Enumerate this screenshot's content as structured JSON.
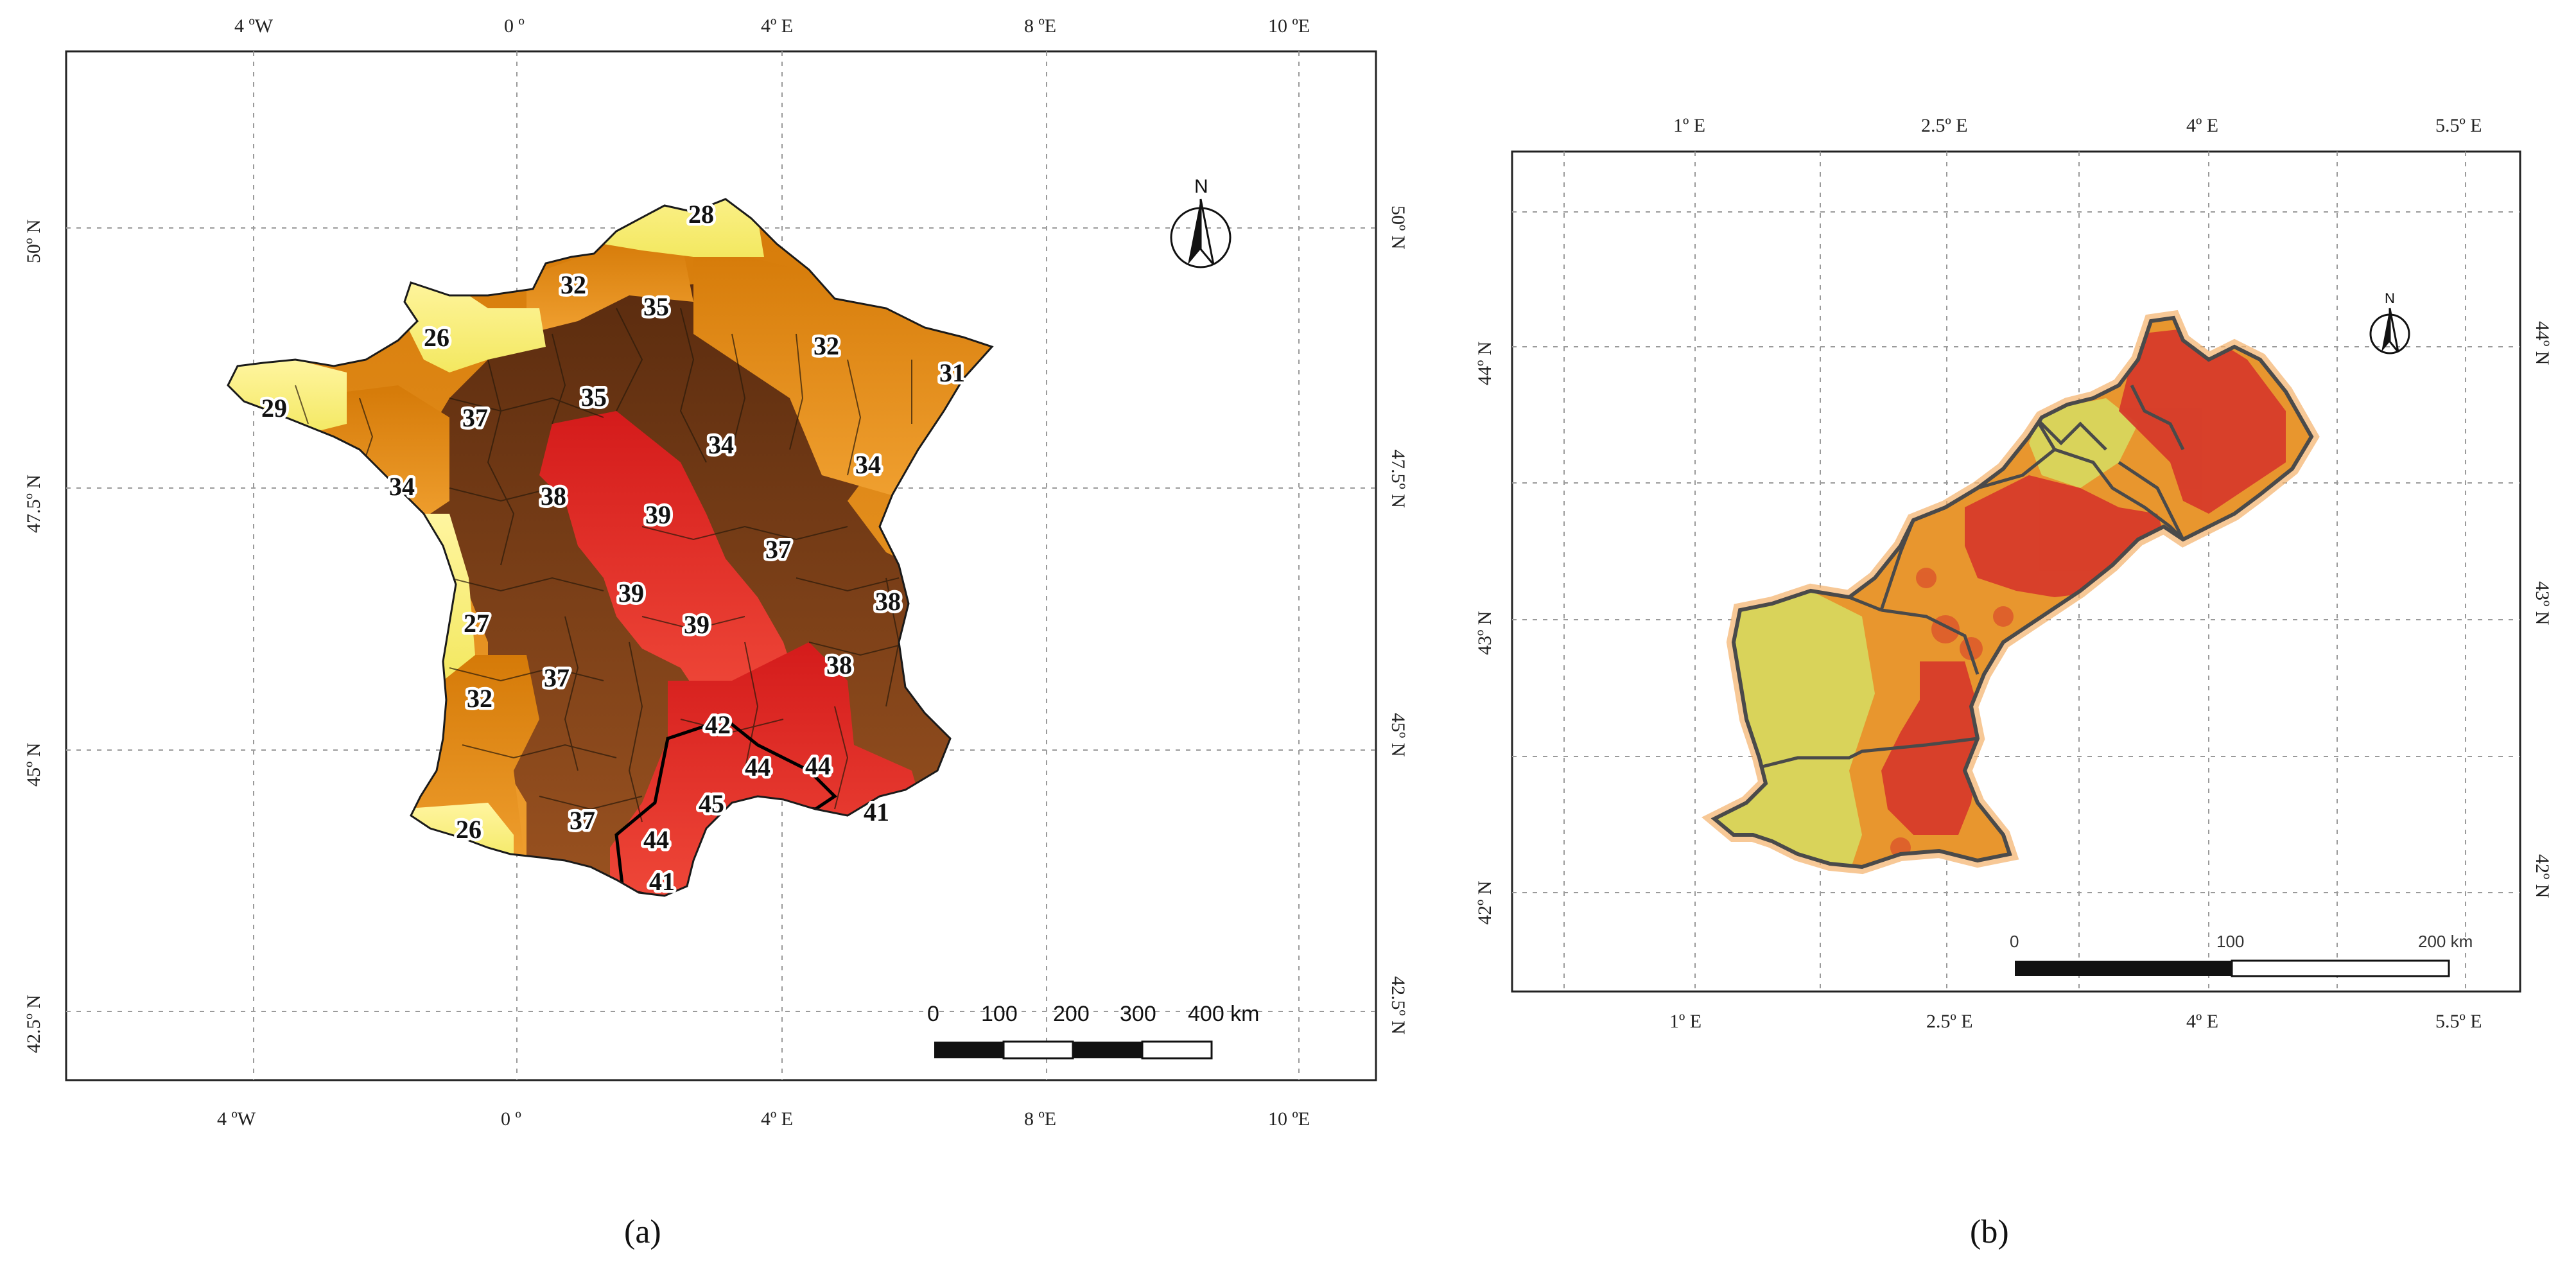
{
  "panel_a": {
    "caption": "(a)",
    "lon_ticks": [
      "4 ºW",
      "0 º",
      "4º E",
      "8 ºE",
      "10 ºE"
    ],
    "lat_ticks": [
      "50º N",
      "47.5º N",
      "45º N",
      "42.5º N"
    ],
    "scale_labels": [
      "0",
      "100",
      "200",
      "300",
      "400 km"
    ],
    "north_label": "N",
    "department_values": [
      {
        "label": "28",
        "color": "#fbf280"
      },
      {
        "label": "32",
        "color": "#e6890e"
      },
      {
        "label": "35",
        "color": "#7a3d14"
      },
      {
        "label": "26",
        "color": "#fbf280"
      },
      {
        "label": "32",
        "color": "#e6890e"
      },
      {
        "label": "31",
        "color": "#e6890e"
      },
      {
        "label": "29",
        "color": "#fbf280"
      },
      {
        "label": "37",
        "color": "#7a3d14"
      },
      {
        "label": "35",
        "color": "#7a3d14"
      },
      {
        "label": "34",
        "color": "#7a3d14"
      },
      {
        "label": "34",
        "color": "#e6890e"
      },
      {
        "label": "34",
        "color": "#e6890e"
      },
      {
        "label": "38",
        "color": "#e02626"
      },
      {
        "label": "39",
        "color": "#e02626"
      },
      {
        "label": "37",
        "color": "#7a3d14"
      },
      {
        "label": "39",
        "color": "#e02626"
      },
      {
        "label": "39",
        "color": "#e02626"
      },
      {
        "label": "38",
        "color": "#7a3d14"
      },
      {
        "label": "27",
        "color": "#fbf280"
      },
      {
        "label": "37",
        "color": "#7a3d14"
      },
      {
        "label": "38",
        "color": "#7a3d14"
      },
      {
        "label": "32",
        "color": "#e6890e"
      },
      {
        "label": "42",
        "color": "#e02626"
      },
      {
        "label": "44",
        "color": "#e02626"
      },
      {
        "label": "44",
        "color": "#e02626"
      },
      {
        "label": "45",
        "color": "#e02626"
      },
      {
        "label": "26",
        "color": "#fbf280"
      },
      {
        "label": "37",
        "color": "#7a3d14"
      },
      {
        "label": "44",
        "color": "#e02626"
      },
      {
        "label": "41",
        "color": "#e02626"
      },
      {
        "label": "41",
        "color": "#e02626"
      }
    ]
  },
  "panel_b": {
    "caption": "(b)",
    "lon_ticks": [
      "1º E",
      "2.5º E",
      "4º E",
      "5.5º E"
    ],
    "lat_ticks": [
      "44º N",
      "43º N",
      "42º N"
    ],
    "scale_labels": [
      "0",
      "100",
      "200 km"
    ],
    "north_label": "N"
  },
  "colors": {
    "yellow": "#fbf280",
    "orange": "#e6890e",
    "brown": "#7a3d14",
    "red": "#e02626",
    "olive": "#d9d35a",
    "b_orange": "#e8962e",
    "b_red": "#d6382a"
  }
}
